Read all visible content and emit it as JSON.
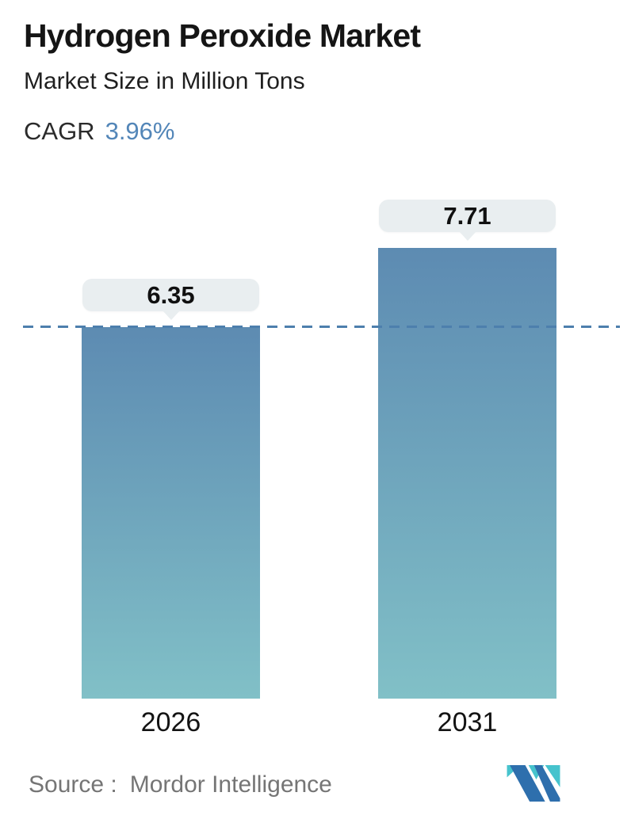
{
  "header": {
    "title": "Hydrogen Peroxide Market",
    "subtitle": "Market Size in Million Tons",
    "cagr_label": "CAGR",
    "cagr_value": "3.96%"
  },
  "footer": {
    "source_label": "Source :",
    "source_name": "Mordor Intelligence",
    "logo_icon": "mordor-intelligence-logo"
  },
  "colors": {
    "accent_blue": "#5386b8",
    "bar_gradient_top": "#5d8bb2",
    "bar_gradient_bottom": "#81c0c7",
    "dashed_line": "#4d7fad",
    "tooltip_bg": "#e9eef0",
    "source_text": "#757575",
    "logo_teal": "#46c3cd",
    "logo_blue": "#2e6fad"
  },
  "chart_data": {
    "type": "bar",
    "title": "Hydrogen Peroxide Market",
    "subtitle": "Market Size in Million Tons",
    "cagr": "3.96%",
    "categories": [
      "2026",
      "2031"
    ],
    "values": [
      6.35,
      7.71
    ],
    "value_labels": [
      "6.35",
      "7.71"
    ],
    "xlabel": "",
    "ylabel": "Market Size in Million Tons",
    "ylim": [
      0,
      7.71
    ],
    "grid": false,
    "legend": false,
    "axes_visible": false,
    "bar_style": "vertical gradient, value tooltips above bars",
    "reference_line": {
      "value": 6.35,
      "style": "dashed",
      "spans_full_width": true
    }
  }
}
